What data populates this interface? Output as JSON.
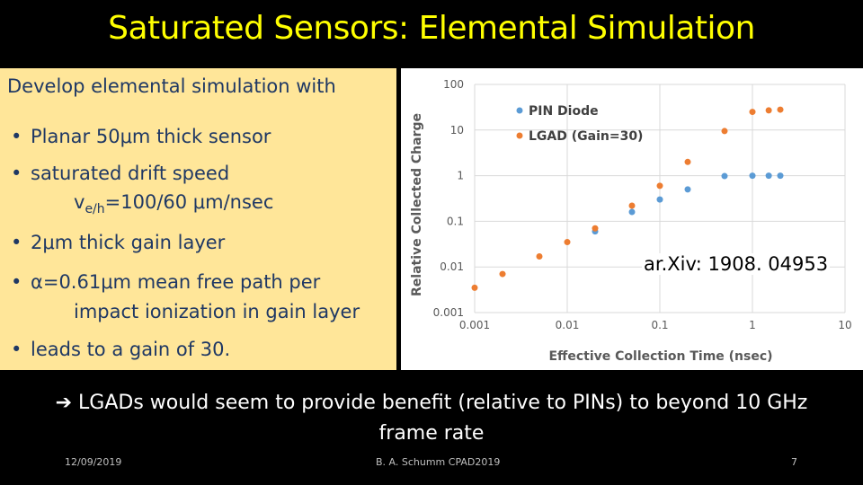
{
  "title": "Saturated Sensors: Elemental Simulation",
  "intro": "Develop elemental simulation with",
  "bullets": {
    "b1": "Planar 50μm thick sensor",
    "b2_line1": "saturated drift speed",
    "b2_line2_v": "v",
    "b2_line2_sub": "e/h",
    "b2_line2_rest": "=100/60 μm/nsec",
    "b3": "2μm thick gain layer",
    "b4_line1": "α=0.61μm mean free path per",
    "b4_line2": "impact ionization in gain layer",
    "b5": "leads to a gain of 30."
  },
  "bullet_glyph": "•",
  "arxiv": "ar.Xiv: 1908. 04953",
  "conclusion": "➔ LGADs would seem to provide benefit (relative to PINs) to beyond 10 GHz frame rate",
  "footer": {
    "date": "12/09/2019",
    "author": "B. A. Schumm CPAD2019",
    "page": "7"
  },
  "colors": {
    "title": "#ffff00",
    "panel": "#ffe699",
    "pin": "#5b9bd5",
    "lgad": "#ed7d31"
  },
  "chart_data": {
    "type": "scatter",
    "xlabel": "Effective Collection Time (nsec)",
    "ylabel": "Relative Collected Charge",
    "xscale": "log",
    "yscale": "log",
    "xlim": [
      0.001,
      10
    ],
    "ylim": [
      0.001,
      100
    ],
    "xticks": [
      "0.001",
      "0.01",
      "0.1",
      "1",
      "10"
    ],
    "yticks": [
      "0.001",
      "0.01",
      "0.1",
      "1",
      "10",
      "100"
    ],
    "grid": true,
    "legend": "top-left",
    "series": [
      {
        "name": "PIN Diode",
        "color": "#5b9bd5",
        "x": [
          0.02,
          0.05,
          0.1,
          0.2,
          0.5,
          1,
          1.5,
          2
        ],
        "y": [
          0.06,
          0.16,
          0.3,
          0.5,
          0.98,
          1,
          1,
          1
        ]
      },
      {
        "name": "LGAD (Gain=30)",
        "color": "#ed7d31",
        "x": [
          0.001,
          0.002,
          0.005,
          0.01,
          0.02,
          0.05,
          0.1,
          0.2,
          0.5,
          1,
          1.5,
          2
        ],
        "y": [
          0.0035,
          0.007,
          0.017,
          0.035,
          0.07,
          0.22,
          0.6,
          2,
          9.5,
          25,
          27,
          28
        ]
      }
    ]
  }
}
